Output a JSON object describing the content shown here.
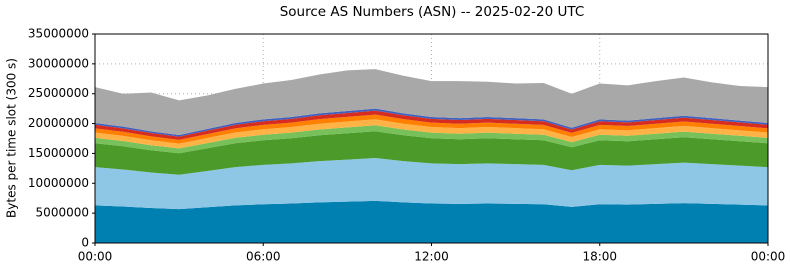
{
  "chart_data": {
    "type": "stacked_area",
    "title": "Source AS Numbers (ASN) -- 2025-02-20 UTC",
    "y_label": "Bytes per time slot (300 s)",
    "x": [
      0,
      1,
      2,
      3,
      4,
      5,
      6,
      7,
      8,
      9,
      10,
      11,
      12,
      13,
      14,
      15,
      16,
      17,
      18,
      19,
      20,
      21,
      22,
      23,
      24
    ],
    "xlim": [
      0,
      24
    ],
    "xticks": [
      {
        "value": 0,
        "label": "00:00"
      },
      {
        "value": 6,
        "label": "06:00"
      },
      {
        "value": 12,
        "label": "12:00"
      },
      {
        "value": 18,
        "label": "18:00"
      },
      {
        "value": 24,
        "label": "00:00"
      }
    ],
    "ylim": [
      0,
      35000000
    ],
    "yticks": [
      0,
      5000000,
      10000000,
      15000000,
      20000000,
      25000000,
      30000000,
      35000000
    ],
    "grid": true,
    "series": [
      {
        "color": "#0080b0",
        "values": [
          6300000,
          6111000,
          5859000,
          5670000,
          5985000,
          6300000,
          6489000,
          6615000,
          6804000,
          6930000,
          7056000,
          6804000,
          6615000,
          6552000,
          6615000,
          6552000,
          6489000,
          6048000,
          6489000,
          6426000,
          6552000,
          6678000,
          6552000,
          6426000,
          6300000
        ]
      },
      {
        "color": "#8ec6e6",
        "values": [
          6400000,
          6208000,
          5952000,
          5760000,
          6080000,
          6400000,
          6592000,
          6720000,
          6912000,
          7040000,
          7168000,
          6912000,
          6720000,
          6656000,
          6720000,
          6656000,
          6592000,
          6144000,
          6592000,
          6528000,
          6656000,
          6784000,
          6656000,
          6528000,
          6400000
        ]
      },
      {
        "color": "#4c9a2a",
        "values": [
          4000000,
          3880000,
          3720000,
          3600000,
          3800000,
          4000000,
          4120000,
          4200000,
          4320000,
          4400000,
          4480000,
          4320000,
          4200000,
          4160000,
          4200000,
          4160000,
          4120000,
          3840000,
          4120000,
          4080000,
          4160000,
          4240000,
          4160000,
          4080000,
          4000000
        ]
      },
      {
        "color": "#77c05a",
        "values": [
          900000,
          873000,
          837000,
          810000,
          855000,
          900000,
          927000,
          945000,
          972000,
          990000,
          1008000,
          972000,
          945000,
          936000,
          945000,
          936000,
          927000,
          864000,
          927000,
          918000,
          936000,
          954000,
          936000,
          918000,
          900000
        ]
      },
      {
        "color": "#ffb347",
        "values": [
          900000,
          873000,
          837000,
          810000,
          855000,
          900000,
          927000,
          945000,
          972000,
          990000,
          1008000,
          972000,
          945000,
          936000,
          945000,
          936000,
          927000,
          864000,
          927000,
          918000,
          936000,
          954000,
          936000,
          918000,
          900000
        ]
      },
      {
        "color": "#ff7f00",
        "values": [
          700000,
          679000,
          651000,
          630000,
          665000,
          700000,
          721000,
          735000,
          756000,
          770000,
          784000,
          756000,
          735000,
          728000,
          735000,
          728000,
          721000,
          672000,
          721000,
          714000,
          728000,
          742000,
          728000,
          714000,
          700000
        ]
      },
      {
        "color": "#d62d20",
        "values": [
          600000,
          582000,
          558000,
          540000,
          570000,
          600000,
          618000,
          630000,
          648000,
          660000,
          672000,
          648000,
          630000,
          624000,
          630000,
          624000,
          618000,
          576000,
          618000,
          612000,
          624000,
          636000,
          624000,
          612000,
          600000
        ]
      },
      {
        "color": "#4060c0",
        "values": [
          300000,
          291000,
          279000,
          270000,
          285000,
          300000,
          309000,
          315000,
          324000,
          330000,
          336000,
          324000,
          315000,
          312000,
          315000,
          312000,
          309000,
          288000,
          309000,
          306000,
          312000,
          318000,
          312000,
          306000,
          300000
        ]
      },
      {
        "color": "#a8a8a8",
        "values": [
          6000000,
          5500000,
          6500000,
          5800000,
          5600000,
          5700000,
          6000000,
          6200000,
          6500000,
          6800000,
          6600000,
          6300000,
          6000000,
          6200000,
          5900000,
          5800000,
          6100000,
          5700000,
          6000000,
          5900000,
          6200000,
          6400000,
          6000000,
          5800000,
          6000000
        ]
      }
    ]
  }
}
